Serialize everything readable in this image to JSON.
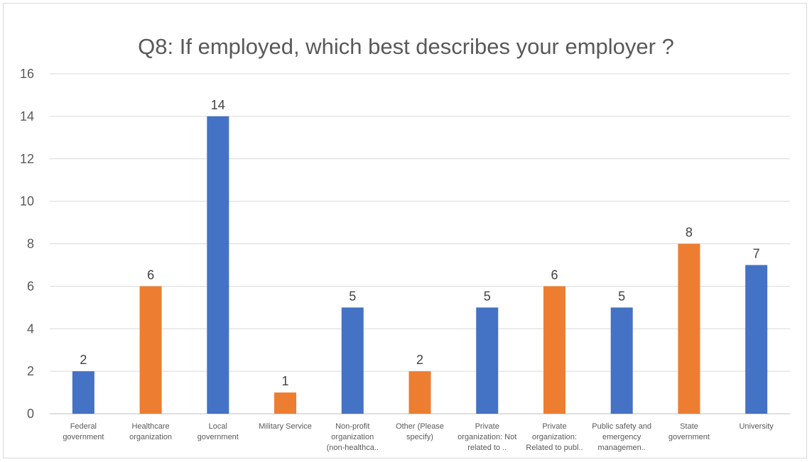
{
  "chart_data": {
    "type": "bar",
    "title": "Q8: If employed, which best describes your employer ?",
    "xlabel": "",
    "ylabel": "",
    "ylim": [
      0,
      16
    ],
    "yticks": [
      "0",
      "2",
      "4",
      "6",
      "8",
      "10",
      "12",
      "14",
      "16"
    ],
    "grid": true,
    "categories": [
      [
        "Federal",
        "government"
      ],
      [
        "Healthcare",
        "organization"
      ],
      [
        "Local",
        "government"
      ],
      [
        "Military Service"
      ],
      [
        "Non-profit",
        "organization",
        "(non-healthca.."
      ],
      [
        "Other (Please",
        "specify)"
      ],
      [
        "Private",
        "organization: Not",
        "related to .."
      ],
      [
        "Private",
        "organization:",
        "Related to publ.."
      ],
      [
        "Public safety and",
        "emergency",
        "managemen.."
      ],
      [
        "State",
        "government"
      ],
      [
        "University"
      ]
    ],
    "values": [
      2,
      6,
      14,
      1,
      5,
      2,
      5,
      6,
      5,
      8,
      7
    ],
    "data_labels": [
      "2",
      "6",
      "14",
      "1",
      "5",
      "2",
      "5",
      "6",
      "5",
      "8",
      "7"
    ],
    "bar_colors": [
      "#4472c4",
      "#ed7d31",
      "#4472c4",
      "#ed7d31",
      "#4472c4",
      "#ed7d31",
      "#4472c4",
      "#ed7d31",
      "#4472c4",
      "#ed7d31",
      "#4472c4"
    ],
    "gridline_color": "#d9d9d9",
    "axis_color": "#bfbfbf"
  }
}
